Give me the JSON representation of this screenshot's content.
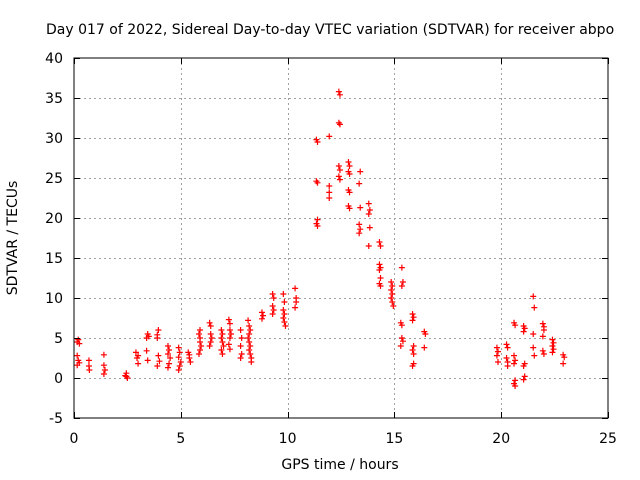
{
  "chart_data": {
    "type": "scatter",
    "title": "Day 017 of 2022, Sidereal Day-to-day VTEC variation (SDTVAR) for receiver abpo",
    "xlabel": "GPS time / hours",
    "ylabel": "SDTVAR / TECUs",
    "xlim": [
      0,
      25
    ],
    "ylim": [
      -5,
      40
    ],
    "xticks": [
      0,
      5,
      10,
      15,
      20,
      25
    ],
    "yticks": [
      -5,
      0,
      5,
      10,
      15,
      20,
      25,
      30,
      35,
      40
    ],
    "xtick_labels": [
      "0",
      "5",
      "10",
      "15",
      "20",
      "25"
    ],
    "ytick_labels": [
      "-5",
      "0",
      "5",
      "10",
      "15",
      "20",
      "25",
      "30",
      "35",
      "40"
    ],
    "grid": true,
    "marker": "+",
    "color": "#ff0000",
    "series": [
      {
        "name": "SDTVAR",
        "points": [
          [
            0.15,
            4.5
          ],
          [
            0.2,
            4.8
          ],
          [
            0.25,
            4.3
          ],
          [
            0.15,
            2.8
          ],
          [
            0.2,
            2.2
          ],
          [
            0.15,
            1.6
          ],
          [
            0.25,
            1.9
          ],
          [
            0.7,
            2.2
          ],
          [
            0.7,
            1.5
          ],
          [
            0.72,
            1.0
          ],
          [
            1.4,
            2.9
          ],
          [
            1.4,
            1.6
          ],
          [
            1.45,
            1.0
          ],
          [
            1.4,
            0.5
          ],
          [
            2.4,
            0.3
          ],
          [
            2.45,
            0.6
          ],
          [
            2.5,
            0.0
          ],
          [
            2.45,
            0.2
          ],
          [
            2.9,
            3.2
          ],
          [
            2.95,
            2.5
          ],
          [
            3.0,
            1.8
          ],
          [
            3.0,
            2.8
          ],
          [
            3.4,
            5.0
          ],
          [
            3.45,
            5.5
          ],
          [
            3.5,
            5.2
          ],
          [
            3.4,
            3.4
          ],
          [
            3.45,
            2.2
          ],
          [
            3.9,
            5.4
          ],
          [
            3.95,
            6.0
          ],
          [
            3.9,
            5.0
          ],
          [
            3.95,
            2.8
          ],
          [
            3.9,
            1.5
          ],
          [
            4.0,
            2.1
          ],
          [
            4.4,
            4.0
          ],
          [
            4.45,
            3.5
          ],
          [
            4.4,
            3.0
          ],
          [
            4.5,
            2.5
          ],
          [
            4.45,
            1.8
          ],
          [
            4.4,
            1.3
          ],
          [
            4.9,
            3.8
          ],
          [
            4.95,
            3.2
          ],
          [
            4.9,
            2.6
          ],
          [
            5.0,
            2.0
          ],
          [
            4.95,
            1.5
          ],
          [
            4.9,
            1.0
          ],
          [
            5.35,
            3.2
          ],
          [
            5.4,
            2.9
          ],
          [
            5.4,
            2.5
          ],
          [
            5.45,
            2.0
          ],
          [
            5.85,
            5.5
          ],
          [
            5.9,
            5.0
          ],
          [
            5.9,
            4.5
          ],
          [
            5.95,
            4.0
          ],
          [
            5.9,
            3.5
          ],
          [
            5.85,
            3.0
          ],
          [
            5.9,
            6.0
          ],
          [
            6.35,
            6.9
          ],
          [
            6.4,
            6.5
          ],
          [
            6.4,
            5.5
          ],
          [
            6.45,
            5.0
          ],
          [
            6.4,
            4.5
          ],
          [
            6.35,
            4.0
          ],
          [
            6.9,
            6.0
          ],
          [
            6.95,
            5.5
          ],
          [
            6.9,
            5.0
          ],
          [
            6.95,
            4.5
          ],
          [
            6.9,
            3.5
          ],
          [
            6.95,
            3.0
          ],
          [
            7.0,
            4.0
          ],
          [
            7.25,
            7.3
          ],
          [
            7.3,
            6.8
          ],
          [
            7.3,
            6.0
          ],
          [
            7.35,
            5.5
          ],
          [
            7.3,
            5.0
          ],
          [
            7.25,
            4.2
          ],
          [
            7.3,
            3.6
          ],
          [
            7.8,
            6.0
          ],
          [
            7.85,
            5.0
          ],
          [
            7.8,
            4.0
          ],
          [
            7.85,
            3.0
          ],
          [
            7.8,
            2.5
          ],
          [
            8.15,
            7.2
          ],
          [
            8.2,
            6.5
          ],
          [
            8.25,
            6.0
          ],
          [
            8.2,
            5.5
          ],
          [
            8.15,
            5.0
          ],
          [
            8.2,
            4.5
          ],
          [
            8.25,
            4.0
          ],
          [
            8.2,
            3.5
          ],
          [
            8.25,
            3.0
          ],
          [
            8.3,
            2.5
          ],
          [
            8.3,
            2.0
          ],
          [
            8.8,
            8.2
          ],
          [
            8.85,
            7.8
          ],
          [
            8.8,
            7.4
          ],
          [
            9.3,
            10.5
          ],
          [
            9.35,
            10.0
          ],
          [
            9.3,
            9.0
          ],
          [
            9.35,
            8.5
          ],
          [
            9.3,
            8.0
          ],
          [
            9.8,
            10.5
          ],
          [
            9.85,
            9.5
          ],
          [
            9.8,
            8.5
          ],
          [
            9.85,
            8.0
          ],
          [
            9.8,
            7.5
          ],
          [
            9.85,
            7.0
          ],
          [
            9.9,
            6.5
          ],
          [
            10.35,
            11.2
          ],
          [
            10.4,
            10.0
          ],
          [
            10.4,
            9.5
          ],
          [
            10.35,
            8.8
          ],
          [
            11.35,
            29.8
          ],
          [
            11.4,
            29.5
          ],
          [
            11.35,
            24.6
          ],
          [
            11.4,
            24.4
          ],
          [
            11.4,
            19.8
          ],
          [
            11.35,
            19.3
          ],
          [
            11.4,
            19.0
          ],
          [
            11.95,
            30.2
          ],
          [
            11.95,
            24.0
          ],
          [
            11.95,
            23.2
          ],
          [
            11.95,
            22.5
          ],
          [
            12.4,
            35.8
          ],
          [
            12.45,
            35.4
          ],
          [
            12.4,
            31.9
          ],
          [
            12.45,
            31.7
          ],
          [
            12.4,
            26.5
          ],
          [
            12.45,
            26.0
          ],
          [
            12.4,
            25.2
          ],
          [
            12.45,
            24.8
          ],
          [
            12.85,
            27.0
          ],
          [
            12.9,
            26.5
          ],
          [
            12.85,
            25.8
          ],
          [
            12.9,
            25.5
          ],
          [
            12.85,
            23.5
          ],
          [
            12.9,
            23.2
          ],
          [
            12.85,
            21.5
          ],
          [
            12.9,
            21.2
          ],
          [
            13.4,
            25.8
          ],
          [
            13.35,
            24.3
          ],
          [
            13.4,
            21.3
          ],
          [
            13.35,
            19.2
          ],
          [
            13.4,
            18.6
          ],
          [
            13.35,
            18.1
          ],
          [
            13.8,
            21.8
          ],
          [
            13.85,
            21.0
          ],
          [
            13.8,
            20.5
          ],
          [
            13.85,
            18.8
          ],
          [
            13.8,
            16.5
          ],
          [
            14.3,
            17.0
          ],
          [
            14.35,
            16.5
          ],
          [
            14.3,
            14.2
          ],
          [
            14.35,
            13.8
          ],
          [
            14.3,
            13.5
          ],
          [
            14.35,
            12.5
          ],
          [
            14.3,
            11.8
          ],
          [
            14.35,
            11.5
          ],
          [
            14.85,
            12.0
          ],
          [
            14.9,
            11.5
          ],
          [
            14.85,
            11.0
          ],
          [
            14.9,
            10.5
          ],
          [
            14.85,
            10.0
          ],
          [
            14.9,
            9.5
          ],
          [
            14.95,
            9.0
          ],
          [
            15.35,
            13.8
          ],
          [
            15.4,
            12.0
          ],
          [
            15.35,
            11.5
          ],
          [
            15.3,
            6.9
          ],
          [
            15.35,
            6.6
          ],
          [
            15.35,
            5.0
          ],
          [
            15.4,
            4.6
          ],
          [
            15.3,
            4.0
          ],
          [
            15.85,
            8.0
          ],
          [
            15.9,
            7.6
          ],
          [
            15.85,
            7.2
          ],
          [
            15.9,
            4.0
          ],
          [
            15.85,
            3.5
          ],
          [
            15.9,
            3.0
          ],
          [
            15.9,
            1.8
          ],
          [
            15.85,
            1.5
          ],
          [
            16.4,
            5.8
          ],
          [
            16.45,
            5.5
          ],
          [
            16.4,
            3.8
          ],
          [
            19.8,
            3.8
          ],
          [
            19.85,
            3.3
          ],
          [
            19.8,
            2.8
          ],
          [
            19.85,
            2.0
          ],
          [
            20.25,
            4.2
          ],
          [
            20.3,
            3.8
          ],
          [
            20.25,
            2.5
          ],
          [
            20.3,
            2.0
          ],
          [
            20.3,
            1.5
          ],
          [
            20.6,
            6.9
          ],
          [
            20.65,
            6.6
          ],
          [
            20.6,
            2.8
          ],
          [
            20.65,
            2.2
          ],
          [
            20.6,
            1.8
          ],
          [
            20.65,
            -0.3
          ],
          [
            20.6,
            -0.7
          ],
          [
            20.65,
            -1.0
          ],
          [
            21.05,
            6.5
          ],
          [
            21.1,
            6.2
          ],
          [
            21.05,
            5.8
          ],
          [
            21.1,
            1.8
          ],
          [
            21.05,
            1.5
          ],
          [
            21.1,
            0.2
          ],
          [
            21.05,
            -0.2
          ],
          [
            21.5,
            10.2
          ],
          [
            21.55,
            8.8
          ],
          [
            21.5,
            5.5
          ],
          [
            21.5,
            3.8
          ],
          [
            21.55,
            2.8
          ],
          [
            21.95,
            6.8
          ],
          [
            22.0,
            6.4
          ],
          [
            22.0,
            6.0
          ],
          [
            21.95,
            5.2
          ],
          [
            21.95,
            3.4
          ],
          [
            22.0,
            3.0
          ],
          [
            22.4,
            4.8
          ],
          [
            22.45,
            4.4
          ],
          [
            22.4,
            4.0
          ],
          [
            22.45,
            3.6
          ],
          [
            22.4,
            3.2
          ],
          [
            22.9,
            2.9
          ],
          [
            22.95,
            2.6
          ],
          [
            22.9,
            1.8
          ]
        ]
      }
    ]
  }
}
